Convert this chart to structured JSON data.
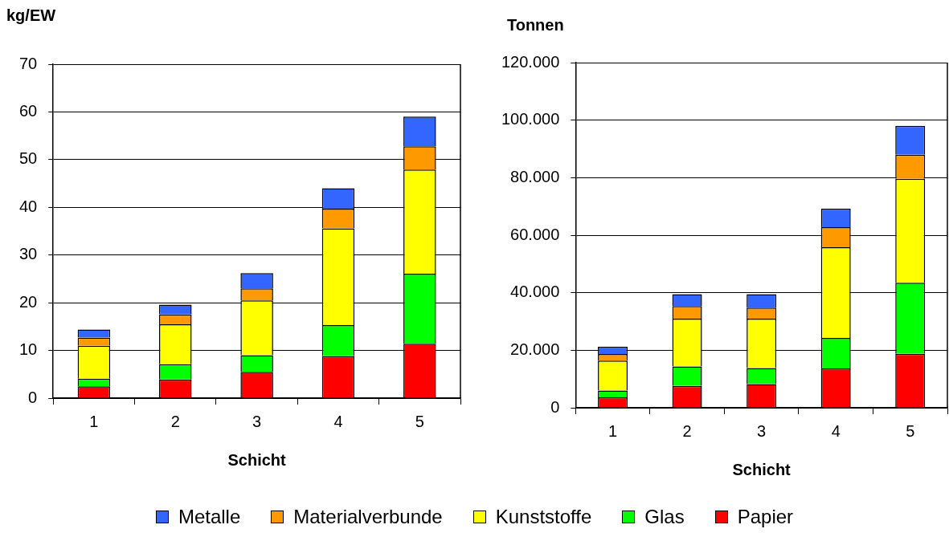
{
  "chart_data": [
    {
      "type": "bar",
      "stacked": true,
      "ylabel": "kg/EW",
      "xlabel": "Schicht",
      "categories": [
        "1",
        "2",
        "3",
        "4",
        "5"
      ],
      "ylim": [
        0,
        70
      ],
      "yticks": [
        0,
        10,
        20,
        30,
        40,
        50,
        60,
        70
      ],
      "grid": "y",
      "legend": "bottom",
      "series": [
        {
          "name": "Papier",
          "color": "#ff0000",
          "values": [
            2.5,
            3.9,
            5.5,
            8.8,
            11.4
          ]
        },
        {
          "name": "Glas",
          "color": "#00ff00",
          "values": [
            1.6,
            3.2,
            3.5,
            6.5,
            14.7
          ]
        },
        {
          "name": "Kunststoffe",
          "color": "#ffff00",
          "values": [
            6.9,
            8.4,
            11.5,
            20.3,
            21.8
          ]
        },
        {
          "name": "Materialverbunde",
          "color": "#ff9900",
          "values": [
            1.7,
            2.1,
            2.5,
            4.1,
            4.9
          ]
        },
        {
          "name": "Metalle",
          "color": "#3366ff",
          "values": [
            1.7,
            2.0,
            3.2,
            4.3,
            6.2
          ]
        }
      ]
    },
    {
      "type": "bar",
      "stacked": true,
      "ylabel": "Tonnen",
      "xlabel": "Schicht",
      "categories": [
        "1",
        "2",
        "3",
        "4",
        "5"
      ],
      "ylim": [
        0,
        120000
      ],
      "yticks": [
        0,
        {
          "value": 20000,
          "label": "20.000"
        },
        {
          "value": 40000,
          "label": "40.000"
        },
        {
          "value": 60000,
          "label": "60.000"
        },
        {
          "value": 80000,
          "label": "80.000"
        },
        {
          "value": 100000,
          "label": "100.000"
        },
        {
          "value": 120000,
          "label": "120.000"
        }
      ],
      "grid": "y",
      "series": [
        {
          "color": "#ff0000",
          "values": [
            3600,
            7600,
            8200,
            13700,
            18800
          ]
        },
        {
          "color": "#00ff00",
          "values": [
            2400,
            6800,
            5600,
            10600,
            24700
          ]
        },
        {
          "color": "#ffff00",
          "values": [
            10400,
            16600,
            17200,
            31500,
            36100
          ]
        },
        {
          "color": "#ff9900",
          "values": [
            2300,
            4400,
            3800,
            7000,
            8400
          ]
        },
        {
          "color": "#3366ff",
          "values": [
            2500,
            4100,
            4700,
            6400,
            10000
          ]
        }
      ]
    }
  ]
}
